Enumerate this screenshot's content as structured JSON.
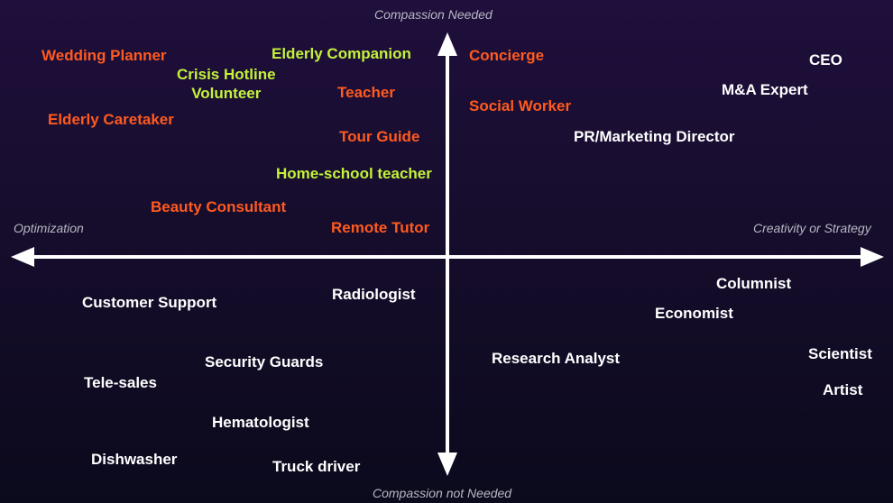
{
  "axes": {
    "top": "Compassion Needed",
    "bottom": "Compassion not Needed",
    "left": "Optimization",
    "right": "Creativity or Strategy"
  },
  "colors": {
    "orange": "#ff5a1f",
    "green": "#c4f23a",
    "white": "#ffffff",
    "axis": "#ffffff"
  },
  "jobs": [
    {
      "label": "Wedding Planner",
      "color": "orange"
    },
    {
      "label": "Elderly Companion",
      "color": "green"
    },
    {
      "label": "Concierge",
      "color": "orange"
    },
    {
      "label": "CEO",
      "color": "white"
    },
    {
      "label": "Crisis Hotline\nVolunteer",
      "color": "green"
    },
    {
      "label": "M&A Expert",
      "color": "white"
    },
    {
      "label": "Teacher",
      "color": "orange"
    },
    {
      "label": "Social Worker",
      "color": "orange"
    },
    {
      "label": "Elderly Caretaker",
      "color": "orange"
    },
    {
      "label": "Tour Guide",
      "color": "orange"
    },
    {
      "label": "PR/Marketing Director",
      "color": "white"
    },
    {
      "label": "Home-school teacher",
      "color": "green"
    },
    {
      "label": "Beauty Consultant",
      "color": "orange"
    },
    {
      "label": "Remote Tutor",
      "color": "orange"
    },
    {
      "label": "Columnist",
      "color": "white"
    },
    {
      "label": "Radiologist",
      "color": "white"
    },
    {
      "label": "Customer Support",
      "color": "white"
    },
    {
      "label": "Economist",
      "color": "white"
    },
    {
      "label": "Security Guards",
      "color": "white"
    },
    {
      "label": "Research Analyst",
      "color": "white"
    },
    {
      "label": "Scientist",
      "color": "white"
    },
    {
      "label": "Tele-sales",
      "color": "white"
    },
    {
      "label": "Artist",
      "color": "white"
    },
    {
      "label": "Hematologist",
      "color": "white"
    },
    {
      "label": "Dishwasher",
      "color": "white"
    },
    {
      "label": "Truck driver",
      "color": "white"
    }
  ]
}
